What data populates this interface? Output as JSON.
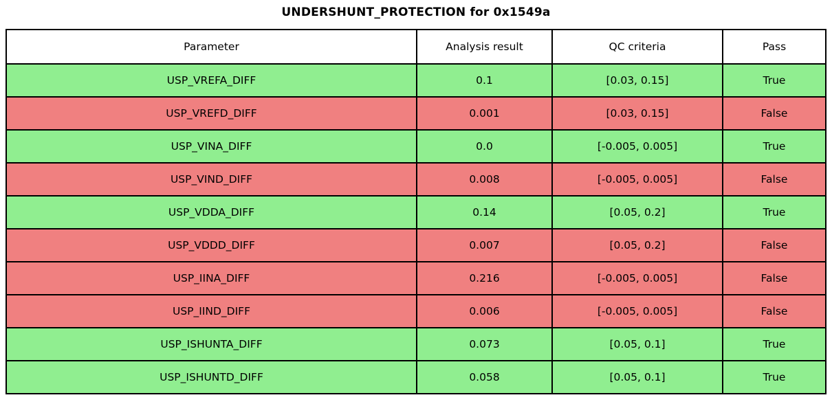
{
  "title": "UNDERSHUNT_PROTECTION for 0x1549a",
  "colors": {
    "pass_row": "#90ee90",
    "fail_row": "#f08080",
    "border": "#000000",
    "header_bg": "#ffffff",
    "text": "#000000"
  },
  "chart_data": {
    "type": "table",
    "title": "UNDERSHUNT_PROTECTION for 0x1549a",
    "columns": [
      "Parameter",
      "Analysis result",
      "QC criteria",
      "Pass"
    ],
    "rows": [
      {
        "parameter": "USP_VREFA_DIFF",
        "analysis_result": "0.1",
        "qc_criteria": "[0.03, 0.15]",
        "pass": "True"
      },
      {
        "parameter": "USP_VREFD_DIFF",
        "analysis_result": "0.001",
        "qc_criteria": "[0.03, 0.15]",
        "pass": "False"
      },
      {
        "parameter": "USP_VINA_DIFF",
        "analysis_result": "0.0",
        "qc_criteria": "[-0.005, 0.005]",
        "pass": "True"
      },
      {
        "parameter": "USP_VIND_DIFF",
        "analysis_result": "0.008",
        "qc_criteria": "[-0.005, 0.005]",
        "pass": "False"
      },
      {
        "parameter": "USP_VDDA_DIFF",
        "analysis_result": "0.14",
        "qc_criteria": "[0.05, 0.2]",
        "pass": "True"
      },
      {
        "parameter": "USP_VDDD_DIFF",
        "analysis_result": "0.007",
        "qc_criteria": "[0.05, 0.2]",
        "pass": "False"
      },
      {
        "parameter": "USP_IINA_DIFF",
        "analysis_result": "0.216",
        "qc_criteria": "[-0.005, 0.005]",
        "pass": "False"
      },
      {
        "parameter": "USP_IIND_DIFF",
        "analysis_result": "0.006",
        "qc_criteria": "[-0.005, 0.005]",
        "pass": "False"
      },
      {
        "parameter": "USP_ISHUNTA_DIFF",
        "analysis_result": "0.073",
        "qc_criteria": "[0.05, 0.1]",
        "pass": "True"
      },
      {
        "parameter": "USP_ISHUNTD_DIFF",
        "analysis_result": "0.058",
        "qc_criteria": "[0.05, 0.1]",
        "pass": "True"
      }
    ]
  }
}
